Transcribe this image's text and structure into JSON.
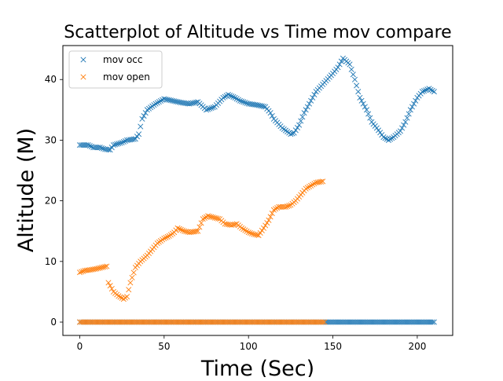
{
  "chart_data": {
    "type": "scatter",
    "title": "Scatterplot of Altitude vs Time mov compare",
    "xlabel": "Time (Sec)",
    "ylabel": "Altitude (M)",
    "xlim": [
      -10,
      221
    ],
    "ylim": [
      -2.2,
      45.6
    ],
    "xticks": [
      0,
      50,
      100,
      150,
      200
    ],
    "xtick_labels": [
      "0",
      "50",
      "100",
      "150",
      "200"
    ],
    "yticks": [
      0,
      10,
      20,
      30,
      40
    ],
    "ytick_labels": [
      "0",
      "10",
      "20",
      "30",
      "40"
    ],
    "marker": "x",
    "grid": false,
    "legend": {
      "placement": "top-left"
    },
    "series": [
      {
        "name": "mov occ",
        "color": "#1f77b4",
        "zero_range": [
          0,
          210
        ],
        "curve": [
          [
            0,
            29.2
          ],
          [
            5,
            29.2
          ],
          [
            8,
            28.8
          ],
          [
            12,
            28.8
          ],
          [
            15,
            28.5
          ],
          [
            18,
            28.4
          ],
          [
            20,
            29.2
          ],
          [
            25,
            29.6
          ],
          [
            28,
            30
          ],
          [
            33,
            30.2
          ],
          [
            35,
            31
          ],
          [
            37,
            33.5
          ],
          [
            40,
            35
          ],
          [
            45,
            36
          ],
          [
            50,
            36.8
          ],
          [
            55,
            36.5
          ],
          [
            60,
            36.2
          ],
          [
            65,
            36
          ],
          [
            70,
            36.3
          ],
          [
            75,
            35
          ],
          [
            80,
            35.5
          ],
          [
            85,
            37
          ],
          [
            88,
            37.5
          ],
          [
            92,
            37
          ],
          [
            95,
            36.5
          ],
          [
            100,
            36
          ],
          [
            105,
            35.8
          ],
          [
            110,
            35.5
          ],
          [
            113,
            34.5
          ],
          [
            115,
            33.5
          ],
          [
            120,
            32
          ],
          [
            125,
            31
          ],
          [
            127,
            31.2
          ],
          [
            130,
            32.5
          ],
          [
            133,
            34.5
          ],
          [
            136,
            36
          ],
          [
            140,
            38
          ],
          [
            145,
            39.5
          ],
          [
            150,
            41
          ],
          [
            153,
            42
          ],
          [
            156,
            43.5
          ],
          [
            160,
            42.5
          ],
          [
            163,
            40
          ],
          [
            166,
            37
          ],
          [
            170,
            35
          ],
          [
            173,
            33
          ],
          [
            176,
            32
          ],
          [
            180,
            30.5
          ],
          [
            183,
            30
          ],
          [
            186,
            30.5
          ],
          [
            190,
            31.5
          ],
          [
            193,
            33
          ],
          [
            196,
            35
          ],
          [
            200,
            37
          ],
          [
            203,
            38
          ],
          [
            207,
            38.5
          ],
          [
            210,
            38
          ]
        ]
      },
      {
        "name": "mov open",
        "color": "#ff7f0e",
        "zero_range": [
          0,
          145
        ],
        "curve": [
          [
            0,
            8.2
          ],
          [
            3,
            8.5
          ],
          [
            6,
            8.6
          ],
          [
            10,
            8.8
          ],
          [
            13,
            9
          ],
          [
            16,
            9.2
          ],
          [
            17,
            6.5
          ],
          [
            20,
            5
          ],
          [
            23,
            4.3
          ],
          [
            26,
            3.8
          ],
          [
            28,
            4.2
          ],
          [
            30,
            6.5
          ],
          [
            33,
            9
          ],
          [
            36,
            10
          ],
          [
            40,
            11
          ],
          [
            43,
            12
          ],
          [
            46,
            13
          ],
          [
            50,
            13.8
          ],
          [
            53,
            14.2
          ],
          [
            56,
            14.8
          ],
          [
            58,
            15.5
          ],
          [
            62,
            15
          ],
          [
            65,
            14.8
          ],
          [
            70,
            15
          ],
          [
            73,
            17
          ],
          [
            76,
            17.5
          ],
          [
            80,
            17.2
          ],
          [
            83,
            17
          ],
          [
            86,
            16.2
          ],
          [
            90,
            16
          ],
          [
            93,
            16.2
          ],
          [
            96,
            15.5
          ],
          [
            100,
            14.8
          ],
          [
            103,
            14.5
          ],
          [
            106,
            14.3
          ],
          [
            109,
            15.5
          ],
          [
            112,
            16.8
          ],
          [
            115,
            18.5
          ],
          [
            118,
            19
          ],
          [
            122,
            19
          ],
          [
            125,
            19.3
          ],
          [
            128,
            20
          ],
          [
            131,
            21
          ],
          [
            134,
            22
          ],
          [
            137,
            22.5
          ],
          [
            140,
            23
          ],
          [
            144,
            23.2
          ]
        ]
      }
    ]
  }
}
